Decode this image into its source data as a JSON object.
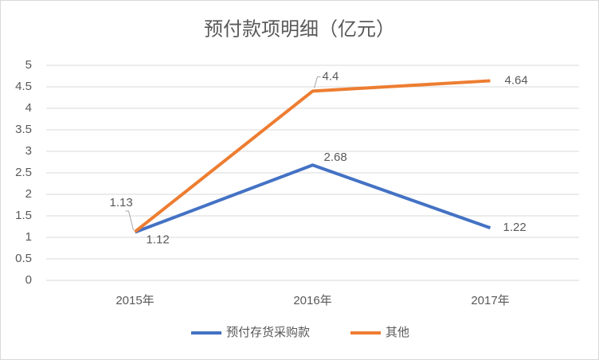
{
  "chart_data": {
    "type": "line",
    "title": "预付款项明细（亿元）",
    "categories": [
      "2015年",
      "2016年",
      "2017年"
    ],
    "series": [
      {
        "name": "预付存货采购款",
        "color": "#4472c4",
        "values": [
          1.12,
          2.68,
          1.22
        ]
      },
      {
        "name": "其他",
        "color": "#ed7d31",
        "values": [
          1.13,
          4.4,
          4.64
        ]
      }
    ],
    "ylim": [
      0,
      5
    ],
    "yticks": [
      0,
      0.5,
      1,
      1.5,
      2,
      2.5,
      3,
      3.5,
      4,
      4.5,
      5
    ],
    "grid": true,
    "legend": "bottom"
  }
}
